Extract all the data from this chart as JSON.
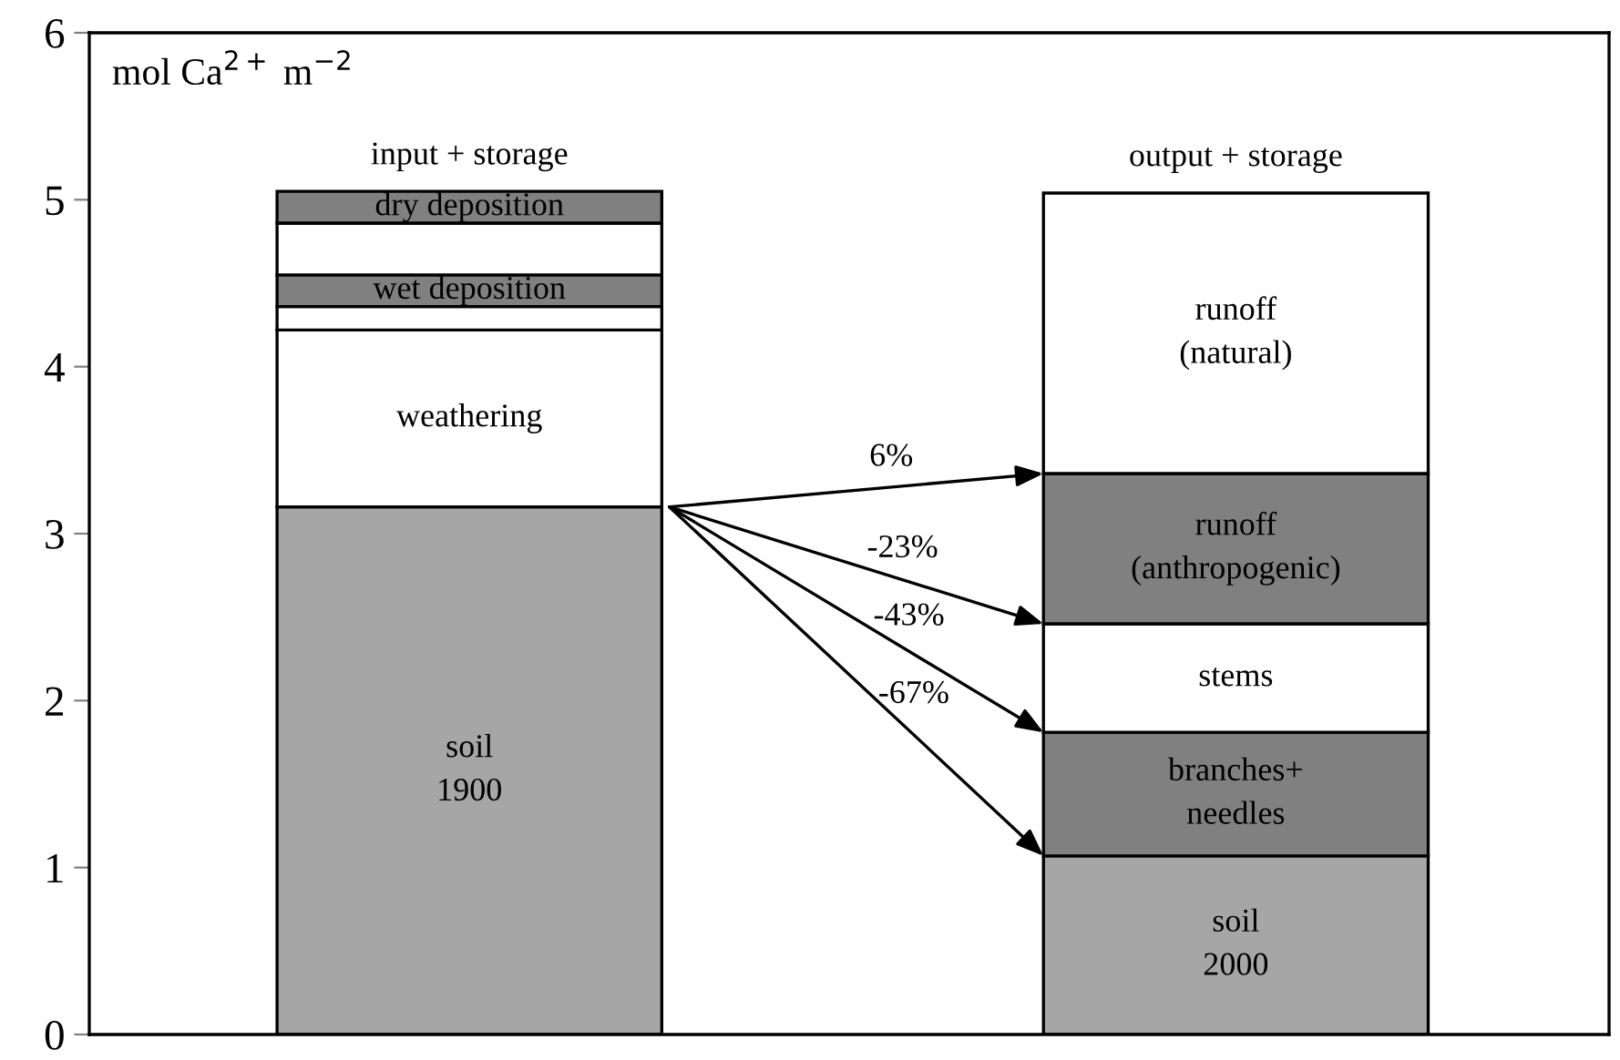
{
  "chart_data": {
    "type": "bar",
    "stacked": true,
    "ylabel": "mol Ca$^{2+}$ m$^{−2}$",
    "categories": [
      "input + storage",
      "output + storage"
    ],
    "ylim": [
      0,
      6
    ],
    "yticks": [
      0,
      1,
      2,
      3,
      4,
      5,
      6
    ],
    "grid": false,
    "legend": false,
    "series": [
      {
        "name": "soil\n1900",
        "color": "#a6a6a6",
        "values": [
          3.16,
          null
        ]
      },
      {
        "name": "weathering",
        "color": "#ffffff",
        "values": [
          1.06,
          null
        ]
      },
      {
        "color": "#ffffff",
        "values": [
          0.14,
          null
        ]
      },
      {
        "name": "wet deposition",
        "color": "#808080",
        "values": [
          0.19,
          null
        ]
      },
      {
        "color": "#ffffff",
        "values": [
          0.31,
          null
        ]
      },
      {
        "name": "dry deposition",
        "color": "#808080",
        "values": [
          0.19,
          null
        ]
      },
      {
        "name": "soil\n2000",
        "color": "#a6a6a6",
        "values": [
          null,
          1.07
        ]
      },
      {
        "name": "branches+\nneedles",
        "color": "#808080",
        "values": [
          null,
          0.74
        ]
      },
      {
        "name": "stems",
        "color": "#ffffff",
        "values": [
          null,
          0.65
        ]
      },
      {
        "name": "runoff\n(anthropogenic)",
        "color": "#808080",
        "values": [
          null,
          0.9
        ]
      },
      {
        "name": "runoff\n(natural)",
        "color": "#ffffff",
        "values": [
          null,
          1.68
        ]
      }
    ],
    "annotations": [
      "6%",
      "-23%",
      "-43%",
      "-67%"
    ]
  }
}
